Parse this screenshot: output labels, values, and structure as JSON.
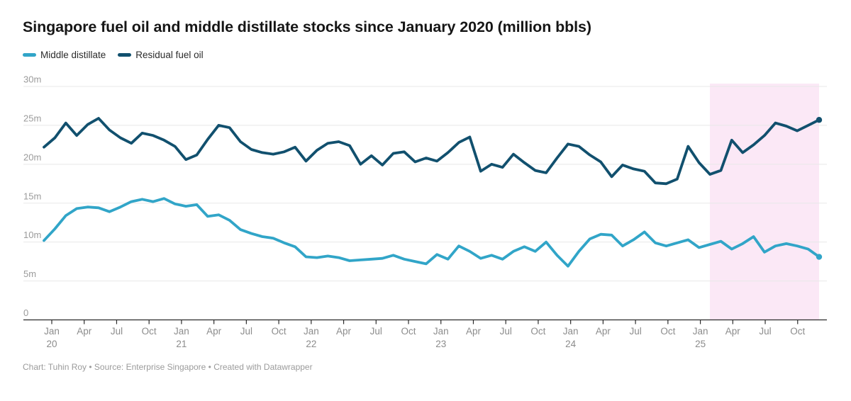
{
  "title": "Singapore fuel oil and middle distillate stocks since January 2020 (million bbls)",
  "legend": [
    {
      "label": "Middle distillate",
      "color": "#31A5C8"
    },
    {
      "label": "Residual fuel oil",
      "color": "#11506E"
    }
  ],
  "footer": "Chart: Tuhin Roy • Source: Enterprise Singapore • Created with Datawrapper",
  "chart_data": {
    "type": "line",
    "title": "Singapore fuel oil and middle distillate stocks since January 2020 (million bbls)",
    "unit": "million bbls",
    "x_start": "2020-01",
    "x_step": "1 month",
    "ylim": [
      0,
      30
    ],
    "grid": true,
    "legend_position": "top-left",
    "y_ticks": [
      {
        "value": 30,
        "label": "30m"
      },
      {
        "value": 25,
        "label": "25m"
      },
      {
        "value": 20,
        "label": "20m"
      },
      {
        "value": 15,
        "label": "15m"
      },
      {
        "value": 10,
        "label": "10m"
      },
      {
        "value": 5,
        "label": "5m"
      },
      {
        "value": 0,
        "label": "0"
      }
    ],
    "x_ticks": [
      {
        "m": 0,
        "label": "Jan",
        "year": "20"
      },
      {
        "m": 3,
        "label": "Apr"
      },
      {
        "m": 6,
        "label": "Jul"
      },
      {
        "m": 9,
        "label": "Oct"
      },
      {
        "m": 12,
        "label": "Jan",
        "year": "21"
      },
      {
        "m": 15,
        "label": "Apr"
      },
      {
        "m": 18,
        "label": "Jul"
      },
      {
        "m": 21,
        "label": "Oct"
      },
      {
        "m": 24,
        "label": "Jan",
        "year": "22"
      },
      {
        "m": 27,
        "label": "Apr"
      },
      {
        "m": 30,
        "label": "Jul"
      },
      {
        "m": 33,
        "label": "Oct"
      },
      {
        "m": 36,
        "label": "Jan",
        "year": "23"
      },
      {
        "m": 39,
        "label": "Apr"
      },
      {
        "m": 42,
        "label": "Jul"
      },
      {
        "m": 45,
        "label": "Oct"
      },
      {
        "m": 48,
        "label": "Jan",
        "year": "24"
      },
      {
        "m": 51,
        "label": "Apr"
      },
      {
        "m": 54,
        "label": "Jul"
      },
      {
        "m": 57,
        "label": "Oct"
      },
      {
        "m": 60,
        "label": "Jan",
        "year": "25"
      },
      {
        "m": 63,
        "label": "Apr"
      },
      {
        "m": 66,
        "label": "Jul"
      },
      {
        "m": 69,
        "label": "Oct"
      }
    ],
    "highlight_region": {
      "from_month_index": 61,
      "to_month_index": 71,
      "color": "#FBE8F6"
    },
    "series": [
      {
        "name": "Middle distillate",
        "color": "#31A5C8",
        "values": [
          10.2,
          11.7,
          13.4,
          14.3,
          14.5,
          14.4,
          13.9,
          14.5,
          15.2,
          15.5,
          15.2,
          15.6,
          14.9,
          14.6,
          14.8,
          13.3,
          13.5,
          12.8,
          11.6,
          11.1,
          10.7,
          10.5,
          9.9,
          9.4,
          8.1,
          8.0,
          8.2,
          8.0,
          7.6,
          7.7,
          7.8,
          7.9,
          8.3,
          7.8,
          7.5,
          7.2,
          8.4,
          7.8,
          9.5,
          8.8,
          7.9,
          8.3,
          7.8,
          8.8,
          9.4,
          8.8,
          10.0,
          8.3,
          6.9,
          8.8,
          10.4,
          11.0,
          10.9,
          9.5,
          10.3,
          11.3,
          9.9,
          9.5,
          9.9,
          10.3,
          9.3,
          9.7,
          10.1,
          9.1,
          9.8,
          10.7,
          8.7,
          9.5,
          9.8,
          9.5,
          9.1,
          8.1
        ]
      },
      {
        "name": "Residual fuel oil",
        "color": "#11506E",
        "values": [
          22.2,
          23.4,
          25.3,
          23.7,
          25.1,
          25.9,
          24.4,
          23.4,
          22.7,
          24.0,
          23.7,
          23.1,
          22.3,
          20.6,
          21.2,
          23.2,
          25.0,
          24.7,
          22.9,
          21.9,
          21.5,
          21.3,
          21.6,
          22.2,
          20.4,
          21.8,
          22.7,
          22.9,
          22.4,
          20.0,
          21.1,
          19.9,
          21.4,
          21.6,
          20.3,
          20.8,
          20.4,
          21.5,
          22.8,
          23.5,
          19.1,
          20.0,
          19.6,
          21.3,
          20.2,
          19.2,
          18.9,
          20.8,
          22.6,
          22.3,
          21.2,
          20.3,
          18.4,
          19.9,
          19.4,
          19.1,
          17.6,
          17.5,
          18.1,
          22.3,
          20.2,
          18.7,
          19.2,
          23.1,
          21.5,
          22.5,
          23.7,
          25.3,
          24.9,
          24.3,
          25.0,
          25.7
        ]
      }
    ],
    "style": {
      "grid_color": "#E8E8E8",
      "axis_color": "#2B2B2B",
      "y_label_color": "#9B9B9B",
      "x_label_color": "#8C8C8C",
      "line_width": 3.8,
      "end_dot_radius": 4.2
    }
  }
}
